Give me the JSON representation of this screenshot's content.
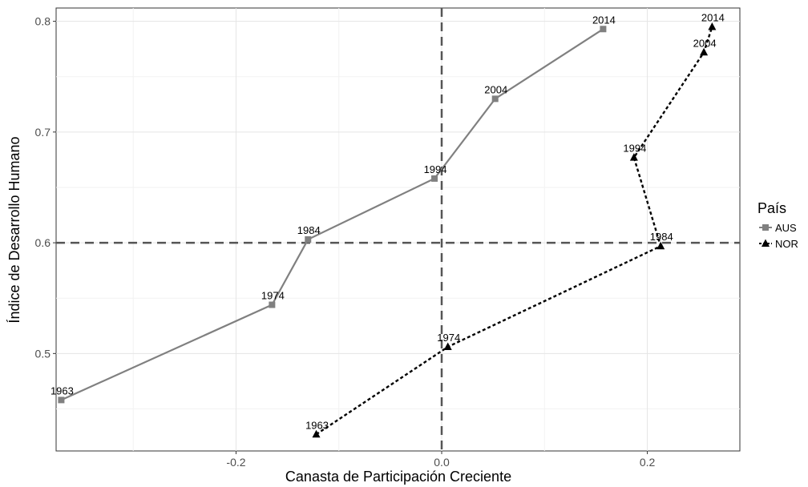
{
  "chart_data": {
    "type": "line",
    "title": "",
    "xlabel": "Canasta de Participación Creciente",
    "ylabel": "Índice de Desarrollo Humano",
    "xlim": [
      -0.375,
      0.29
    ],
    "ylim": [
      0.412,
      0.812
    ],
    "x_ticks": [
      -0.2,
      0.0,
      0.2
    ],
    "x_tick_labels": [
      "-0.2",
      "0.0",
      "0.2"
    ],
    "y_ticks": [
      0.5,
      0.6,
      0.7,
      0.8
    ],
    "y_tick_labels": [
      "0.5",
      "0.6",
      "0.7",
      "0.8"
    ],
    "grid": true,
    "reference_lines": {
      "x": 0.0,
      "y": 0.6
    },
    "legend": {
      "title": "País",
      "position": "right"
    },
    "series": [
      {
        "name": "AUS",
        "marker": "square",
        "line_style": "solid",
        "color": "#808080",
        "points": [
          {
            "label": "1963",
            "x": -0.37,
            "y": 0.458
          },
          {
            "label": "1974",
            "x": -0.165,
            "y": 0.544
          },
          {
            "label": "1984",
            "x": -0.13,
            "y": 0.603
          },
          {
            "label": "1994",
            "x": -0.007,
            "y": 0.658
          },
          {
            "label": "2004",
            "x": 0.052,
            "y": 0.73
          },
          {
            "label": "2014",
            "x": 0.157,
            "y": 0.793
          }
        ]
      },
      {
        "name": "NOR",
        "marker": "triangle",
        "line_style": "dotted",
        "color": "#000000",
        "points": [
          {
            "label": "1963",
            "x": -0.122,
            "y": 0.427
          },
          {
            "label": "1974",
            "x": 0.006,
            "y": 0.506
          },
          {
            "label": "1984",
            "x": 0.213,
            "y": 0.597
          },
          {
            "label": "1994",
            "x": 0.187,
            "y": 0.677
          },
          {
            "label": "2004",
            "x": 0.255,
            "y": 0.772
          },
          {
            "label": "2014",
            "x": 0.263,
            "y": 0.795
          }
        ]
      }
    ]
  }
}
